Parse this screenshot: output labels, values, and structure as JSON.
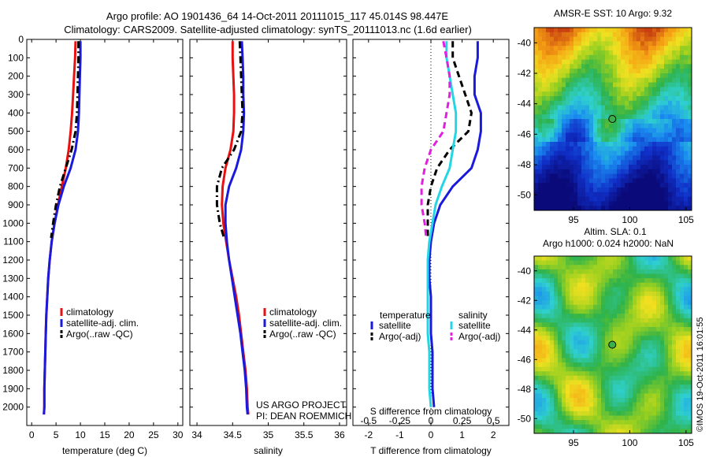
{
  "figure": {
    "title_line1": "Argo profile: AO 1901436_64 14-Oct-2011 20111015_117 45.014S 98.447E",
    "title_line2": "Climatology: CARS2009. Satellite-adjusted climatology: synTS_20111013.nc (1.6d earlier)",
    "project_line1": "US ARGO PROJECT",
    "project_line2": "PI: DEAN ROEMMICH",
    "timestamp": "©IMOS 19-Oct-2011 16:01:55"
  },
  "colors": {
    "climatology": "#e81010",
    "satellite": "#1a1adc",
    "argo": "#000000",
    "satellite_t": "#1a1adc",
    "satellite_s": "#22d6e6",
    "argo_s": "#e020e0"
  },
  "chart_data": [
    {
      "type": "line",
      "id": "temperature",
      "xlabel": "temperature (deg C)",
      "ylabel": "",
      "xlim": [
        -1,
        31
      ],
      "ylim": [
        2100,
        0
      ],
      "xticks": [
        0,
        5,
        10,
        15,
        20,
        25,
        30
      ],
      "yticks": [
        0,
        100,
        200,
        300,
        400,
        500,
        600,
        700,
        800,
        900,
        1000,
        1100,
        1200,
        1300,
        1400,
        1500,
        1600,
        1700,
        1800,
        1900,
        2000
      ],
      "legend": [
        "climatology",
        "satellite-adj. clim.",
        "Argo(..raw -QC)"
      ],
      "series": [
        {
          "name": "climatology",
          "style": "solid",
          "color_key": "climatology",
          "x": [
            9.0,
            8.9,
            8.7,
            8.5,
            8.3,
            8.0,
            7.6,
            7.0,
            6.2,
            5.4,
            4.7,
            4.1,
            3.7,
            3.4,
            3.2,
            3.0,
            2.9,
            2.8,
            2.7,
            2.6,
            2.6,
            2.5
          ],
          "y": [
            10,
            100,
            200,
            300,
            400,
            500,
            600,
            700,
            800,
            900,
            1000,
            1100,
            1200,
            1300,
            1400,
            1500,
            1600,
            1700,
            1800,
            1900,
            2000,
            2040
          ]
        },
        {
          "name": "satellite-adj. clim.",
          "style": "solid",
          "color_key": "satellite",
          "x": [
            10.0,
            10.0,
            9.9,
            9.8,
            9.7,
            9.5,
            9.0,
            8.0,
            6.6,
            5.5,
            4.7,
            4.1,
            3.7,
            3.4,
            3.2,
            3.0,
            2.9,
            2.8,
            2.7,
            2.6,
            2.6,
            2.5
          ],
          "y": [
            10,
            100,
            200,
            300,
            400,
            500,
            600,
            700,
            800,
            900,
            1000,
            1100,
            1200,
            1300,
            1400,
            1500,
            1600,
            1700,
            1800,
            1900,
            2000,
            2040
          ]
        },
        {
          "name": "Argo(..raw -QC)",
          "style": "dashdot",
          "color_key": "argo",
          "x": [
            9.6,
            9.6,
            9.5,
            9.4,
            9.3,
            9.0,
            8.2,
            7.0,
            5.8,
            5.0,
            4.4,
            4.0
          ],
          "y": [
            10,
            100,
            200,
            300,
            400,
            500,
            600,
            700,
            800,
            900,
            1000,
            1080
          ]
        }
      ]
    },
    {
      "type": "line",
      "id": "salinity",
      "xlabel": "salinity",
      "xlim": [
        33.9,
        36.1
      ],
      "ylim": [
        2100,
        0
      ],
      "xticks": [
        34,
        34.5,
        35,
        35.5,
        36
      ],
      "legend": [
        "climatology",
        "satellite-adj. clim.",
        "Argo(..raw -QC)"
      ],
      "series": [
        {
          "name": "climatology",
          "style": "solid",
          "color_key": "climatology",
          "x": [
            34.5,
            34.5,
            34.51,
            34.52,
            34.52,
            34.51,
            34.47,
            34.4,
            34.36,
            34.35,
            34.37,
            34.41,
            34.45,
            34.5,
            34.55,
            34.59,
            34.62,
            34.65,
            34.68,
            34.7,
            34.71,
            34.72
          ],
          "y": [
            10,
            100,
            200,
            300,
            400,
            500,
            600,
            700,
            800,
            900,
            1000,
            1100,
            1200,
            1300,
            1400,
            1500,
            1600,
            1700,
            1800,
            1900,
            2000,
            2040
          ]
        },
        {
          "name": "satellite-adj. clim.",
          "style": "solid",
          "color_key": "satellite",
          "x": [
            34.63,
            34.64,
            34.65,
            34.65,
            34.66,
            34.65,
            34.62,
            34.55,
            34.45,
            34.4,
            34.4,
            34.42,
            34.45,
            34.49,
            34.53,
            34.57,
            34.61,
            34.64,
            34.67,
            34.69,
            34.7,
            34.71
          ],
          "y": [
            10,
            100,
            200,
            300,
            400,
            500,
            600,
            700,
            800,
            900,
            1000,
            1100,
            1200,
            1300,
            1400,
            1500,
            1600,
            1700,
            1800,
            1900,
            2000,
            2040
          ]
        },
        {
          "name": "Argo(..raw -QC)",
          "style": "dashdot",
          "color_key": "argo",
          "x": [
            34.6,
            34.61,
            34.62,
            34.63,
            34.64,
            34.62,
            34.52,
            34.35,
            34.28,
            34.28,
            34.32,
            34.38
          ],
          "y": [
            10,
            100,
            200,
            300,
            400,
            500,
            600,
            700,
            800,
            900,
            1000,
            1080
          ]
        }
      ]
    },
    {
      "type": "line",
      "id": "difference",
      "xlabel": "T difference from climatology",
      "top_label": "S difference from climatology",
      "xlim": [
        -2.5,
        2.5
      ],
      "ylim": [
        2100,
        0
      ],
      "xticks": [
        -2,
        -1,
        0,
        1,
        2
      ],
      "top_ticks": [
        "-0.5",
        "-0.25",
        "0",
        "0.25",
        "0.5"
      ],
      "top_tick_x": [
        -2,
        -1,
        0,
        1,
        2
      ],
      "legend_t_title": "temperature",
      "legend_s_title": "salinity",
      "legend_items": [
        "satellite",
        "Argo(-adj)",
        "satellite",
        "Argo(-adj)"
      ],
      "series": [
        {
          "name": "satellite",
          "group": "temperature",
          "style": "solid",
          "color_key": "satellite_t",
          "x": [
            1.5,
            1.5,
            1.4,
            1.4,
            1.6,
            1.6,
            1.5,
            1.3,
            0.7,
            0.3,
            0.1,
            0.0,
            -0.05,
            -0.05,
            0.0,
            0.0,
            0.0,
            0.05,
            0.05,
            0.05,
            0.1
          ],
          "y": [
            10,
            100,
            200,
            300,
            400,
            500,
            600,
            700,
            800,
            900,
            1000,
            1100,
            1200,
            1300,
            1400,
            1500,
            1600,
            1700,
            1800,
            1900,
            2000
          ]
        },
        {
          "name": "Argo(-adj)",
          "group": "temperature",
          "style": "dashed",
          "color_key": "argo",
          "x": [
            0.7,
            0.7,
            0.9,
            1.1,
            1.3,
            1.2,
            0.6,
            0.2,
            0.0,
            -0.1,
            -0.1,
            -0.1
          ],
          "y": [
            10,
            100,
            200,
            300,
            400,
            500,
            600,
            700,
            800,
            900,
            1000,
            1080
          ]
        },
        {
          "name": "satellite",
          "group": "salinity",
          "style": "solid",
          "color_key": "satellite_s",
          "x": [
            0.5,
            0.5,
            0.6,
            0.7,
            0.8,
            0.8,
            0.7,
            0.6,
            0.35,
            0.15,
            0.05,
            -0.05,
            -0.1,
            -0.1,
            -0.1,
            -0.1,
            -0.1,
            -0.05,
            -0.05,
            -0.05,
            0.0
          ],
          "y": [
            10,
            100,
            200,
            300,
            400,
            500,
            600,
            700,
            800,
            900,
            1000,
            1100,
            1200,
            1300,
            1400,
            1500,
            1600,
            1700,
            1800,
            1900,
            2000
          ]
        },
        {
          "name": "Argo(-adj)",
          "group": "salinity",
          "style": "dashed",
          "color_key": "argo_s",
          "x": [
            0.4,
            0.5,
            0.6,
            0.6,
            0.5,
            0.4,
            0.0,
            -0.2,
            -0.3,
            -0.3,
            -0.2,
            -0.15
          ],
          "y": [
            10,
            100,
            200,
            300,
            400,
            500,
            600,
            700,
            800,
            900,
            1000,
            1080
          ]
        }
      ]
    },
    {
      "type": "heatmap",
      "id": "sst-map",
      "title": "AMSR-E SST: 10 Argo: 9.32",
      "xlim": [
        91.5,
        105.5
      ],
      "ylim": [
        -51,
        -39
      ],
      "xticks": [
        95,
        100,
        105
      ],
      "yticks": [
        -40,
        -42,
        -44,
        -46,
        -48,
        -50
      ],
      "marker": {
        "lon": 98.45,
        "lat": -45.0
      }
    },
    {
      "type": "heatmap",
      "id": "sla-map",
      "title_line1": "Altim. SLA: 0.1",
      "title_line2": "Argo h1000: 0.024 h2000: NaN",
      "xlim": [
        91.5,
        105.5
      ],
      "ylim": [
        -51,
        -39
      ],
      "xticks": [
        95,
        100,
        105
      ],
      "yticks": [
        -40,
        -42,
        -44,
        -46,
        -48,
        -50
      ],
      "marker": {
        "lon": 98.45,
        "lat": -45.0
      }
    }
  ]
}
